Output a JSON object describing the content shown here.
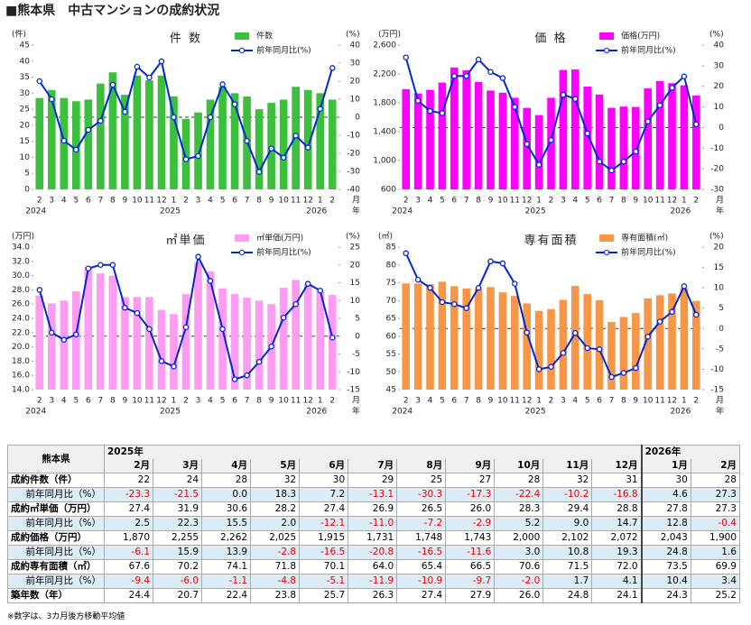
{
  "page_title": "■熊本県　中古マンションの成約状況",
  "chart_data": [
    {
      "type": "bar",
      "title": "件 数",
      "y_unit": "(件)",
      "y2_unit": "(%)",
      "x_unit_month": "月",
      "x_unit_year": "年",
      "categories": [
        "2",
        "3",
        "4",
        "5",
        "6",
        "7",
        "8",
        "9",
        "10",
        "11",
        "12",
        "1",
        "2",
        "3",
        "4",
        "5",
        "6",
        "7",
        "8",
        "9",
        "10",
        "11",
        "12",
        "1",
        "2"
      ],
      "years": [
        "2024",
        null,
        null,
        null,
        null,
        null,
        null,
        null,
        null,
        null,
        null,
        "2025",
        null,
        null,
        null,
        null,
        null,
        null,
        null,
        null,
        null,
        null,
        null,
        "2026",
        null
      ],
      "series": [
        {
          "name": "件数",
          "type": "bar",
          "color": "#3cbf3c",
          "values": [
            28.5,
            31,
            28.5,
            27.5,
            28,
            33,
            36.5,
            29.5,
            35.5,
            34,
            35.5,
            29,
            22,
            24,
            28,
            32,
            30,
            29,
            25,
            27,
            28,
            32,
            31,
            30,
            28
          ]
        },
        {
          "name": "前年同月比(%)",
          "type": "line",
          "axis": "y2",
          "color": "#0026d9",
          "values": [
            20,
            10,
            -13,
            -18,
            -7,
            -2,
            18,
            3,
            28,
            22,
            31,
            0,
            -23.3,
            -21.5,
            0,
            18.3,
            7.2,
            -13.1,
            -30.3,
            -17.3,
            -22.4,
            -10.2,
            -16.8,
            4.6,
            27.3
          ]
        }
      ],
      "ylim": [
        0,
        45
      ],
      "yticks": [
        0,
        5,
        10,
        15,
        20,
        25,
        30,
        35,
        40,
        45
      ],
      "y2lim": [
        -40,
        40
      ],
      "y2ticks": [
        -40,
        -30,
        -20,
        -10,
        0,
        10,
        20,
        30,
        40
      ],
      "y2_refline": 0,
      "grid": false
    },
    {
      "type": "bar",
      "title": "価 格",
      "y_unit": "(万円)",
      "y2_unit": "(%)",
      "x_unit_month": "月",
      "x_unit_year": "年",
      "categories": [
        "2",
        "3",
        "4",
        "5",
        "6",
        "7",
        "8",
        "9",
        "10",
        "11",
        "12",
        "1",
        "2",
        "3",
        "4",
        "5",
        "6",
        "7",
        "8",
        "9",
        "10",
        "11",
        "12",
        "1",
        "2"
      ],
      "years": [
        "2024",
        null,
        null,
        null,
        null,
        null,
        null,
        null,
        null,
        null,
        null,
        "2025",
        null,
        null,
        null,
        null,
        null,
        null,
        null,
        null,
        null,
        null,
        null,
        "2026",
        null
      ],
      "series": [
        {
          "name": "価格(万円)",
          "type": "bar",
          "color": "#ff00ff",
          "values": [
            1990,
            1930,
            1980,
            2080,
            2290,
            2250,
            2090,
            1970,
            1940,
            1870,
            1730,
            1630,
            1870,
            2255,
            2262,
            2025,
            1915,
            1731,
            1748,
            1743,
            2000,
            2102,
            2072,
            2043,
            1900
          ]
        },
        {
          "name": "前年同月比(%)",
          "type": "line",
          "axis": "y2",
          "color": "#0026d9",
          "values": [
            34,
            13,
            8,
            7,
            25,
            25,
            33,
            27,
            24,
            10,
            -8,
            -18,
            -6.1,
            15.9,
            13.9,
            -2.8,
            -16.5,
            -20.8,
            -16.5,
            -11.6,
            3.0,
            10.8,
            19.3,
            24.8,
            1.6
          ]
        }
      ],
      "ylim": [
        600,
        2600
      ],
      "yticks": [
        600,
        {
          "value": 1000,
          "label": "1,000"
        },
        {
          "value": 1400,
          "label": "1,400"
        },
        {
          "value": 1800,
          "label": "1,800"
        },
        {
          "value": 2200,
          "label": "2,200"
        },
        {
          "value": 2600,
          "label": "2,600"
        }
      ],
      "y2lim": [
        -30,
        40
      ],
      "y2ticks": [
        -30,
        -20,
        -10,
        0,
        10,
        20,
        30,
        40
      ],
      "y2_refline": 0,
      "grid": false
    },
    {
      "type": "bar",
      "title": "㎡単価",
      "y_unit": "(万円)",
      "y2_unit": "(%)",
      "x_unit_month": "月",
      "x_unit_year": "年",
      "categories": [
        "2",
        "3",
        "4",
        "5",
        "6",
        "7",
        "8",
        "9",
        "10",
        "11",
        "12",
        "1",
        "2",
        "3",
        "4",
        "5",
        "6",
        "7",
        "8",
        "9",
        "10",
        "11",
        "12",
        "1",
        "2"
      ],
      "years": [
        "2024",
        null,
        null,
        null,
        null,
        null,
        null,
        null,
        null,
        null,
        null,
        "2025",
        null,
        null,
        null,
        null,
        null,
        null,
        null,
        null,
        null,
        null,
        null,
        "2026",
        null
      ],
      "series": [
        {
          "name": "㎡単価(万円)",
          "type": "bar",
          "color": "#ff9cf2",
          "values": [
            27.2,
            26.1,
            26.5,
            27.8,
            31.2,
            30.3,
            30.0,
            27.0,
            27.0,
            27.0,
            25.2,
            24.6,
            27.4,
            31.9,
            30.6,
            28.2,
            27.4,
            26.9,
            26.5,
            26.0,
            28.3,
            29.4,
            28.8,
            27.8,
            27.3
          ]
        },
        {
          "name": "前年同月比(%)",
          "type": "line",
          "axis": "y2",
          "color": "#0026d9",
          "values": [
            13,
            1,
            -1,
            0.5,
            19,
            20,
            20,
            8,
            6.5,
            2,
            -7,
            -8.5,
            2.5,
            22.3,
            15.5,
            2.0,
            -12.1,
            -11.0,
            -7.2,
            -2.9,
            5.2,
            9.0,
            14.7,
            12.8,
            -0.4
          ]
        }
      ],
      "ylim": [
        14,
        34
      ],
      "yticks": [
        {
          "value": 14,
          "label": "14.0"
        },
        {
          "value": 16,
          "label": "16.0"
        },
        {
          "value": 18,
          "label": "18.0"
        },
        {
          "value": 20,
          "label": "20.0"
        },
        {
          "value": 22,
          "label": "22.0"
        },
        {
          "value": 24,
          "label": "24.0"
        },
        {
          "value": 26,
          "label": "26.0"
        },
        {
          "value": 28,
          "label": "28.0"
        },
        {
          "value": 30,
          "label": "30.0"
        },
        {
          "value": 32,
          "label": "32.0"
        },
        {
          "value": 34,
          "label": "34.0"
        }
      ],
      "y2lim": [
        -15,
        25
      ],
      "y2ticks": [
        -15,
        -10,
        -5,
        0,
        5,
        10,
        15,
        20,
        25
      ],
      "y2_refline": 0,
      "grid": false
    },
    {
      "type": "bar",
      "title": "専有面積",
      "y_unit": "(㎡)",
      "y2_unit": "(%)",
      "x_unit_month": "月",
      "x_unit_year": "年",
      "categories": [
        "2",
        "3",
        "4",
        "5",
        "6",
        "7",
        "8",
        "9",
        "10",
        "11",
        "12",
        "1",
        "2",
        "3",
        "4",
        "5",
        "6",
        "7",
        "8",
        "9",
        "10",
        "11",
        "12",
        "1",
        "2"
      ],
      "years": [
        "2024",
        null,
        null,
        null,
        null,
        null,
        null,
        null,
        null,
        null,
        null,
        "2025",
        null,
        null,
        null,
        null,
        null,
        null,
        null,
        null,
        null,
        null,
        null,
        "2026",
        null
      ],
      "series": [
        {
          "name": "専有面積(㎡)",
          "type": "bar",
          "color": "#f79646",
          "values": [
            74.8,
            74.8,
            74.6,
            75.3,
            74,
            73.4,
            73.3,
            73.8,
            72.3,
            71.3,
            69.2,
            67.1,
            67.6,
            70.2,
            74.1,
            71.8,
            70.1,
            64.0,
            65.4,
            66.5,
            70.6,
            71.5,
            72.0,
            73.5,
            69.9
          ]
        },
        {
          "name": "前年同月比(%)",
          "type": "line",
          "axis": "y2",
          "color": "#0026d9",
          "values": [
            18.5,
            12,
            10,
            6.5,
            6,
            5,
            10,
            16.5,
            16,
            11,
            -1,
            -10,
            -9.4,
            -6.0,
            -1.1,
            -4.8,
            -5.1,
            -11.9,
            -10.9,
            -9.7,
            -2.0,
            1.7,
            4.1,
            10.4,
            3.4
          ]
        }
      ],
      "ylim": [
        45,
        85
      ],
      "yticks": [
        45,
        50,
        55,
        60,
        65,
        70,
        75,
        80,
        85
      ],
      "y2lim": [
        -15,
        20
      ],
      "y2ticks": [
        -15,
        -10,
        -5,
        0,
        5,
        10,
        15,
        20
      ],
      "y2_refline": 0,
      "grid": false
    }
  ],
  "table": {
    "corner": "熊本県",
    "groups": [
      {
        "year": "2025年",
        "months": [
          "2月",
          "3月",
          "4月",
          "5月",
          "6月",
          "7月",
          "8月",
          "9月",
          "10月",
          "11月",
          "12月"
        ]
      },
      {
        "year": "2026年",
        "months": [
          "1月",
          "2月"
        ]
      }
    ],
    "rows": [
      {
        "label": "成約件数（件）",
        "cells": [
          "22",
          "24",
          "28",
          "32",
          "30",
          "29",
          "25",
          "27",
          "28",
          "32",
          "31",
          "30",
          "28"
        ]
      },
      {
        "label": "前年同月比（%）",
        "cells": [
          "-23.3",
          "-21.5",
          "0.0",
          "18.3",
          "7.2",
          "-13.1",
          "-30.3",
          "-17.3",
          "-22.4",
          "-10.2",
          "-16.8",
          "4.6",
          "27.3"
        ]
      },
      {
        "label": "成約㎡単価（万円）",
        "cells": [
          "27.4",
          "31.9",
          "30.6",
          "28.2",
          "27.4",
          "26.9",
          "26.5",
          "26.0",
          "28.3",
          "29.4",
          "28.8",
          "27.8",
          "27.3"
        ]
      },
      {
        "label": "前年同月比（%）",
        "cells": [
          "2.5",
          "22.3",
          "15.5",
          "2.0",
          "-12.1",
          "-11.0",
          "-7.2",
          "-2.9",
          "5.2",
          "9.0",
          "14.7",
          "12.8",
          "-0.4"
        ]
      },
      {
        "label": "成約価格（万円）",
        "cells": [
          "1,870",
          "2,255",
          "2,262",
          "2,025",
          "1,915",
          "1,731",
          "1,748",
          "1,743",
          "2,000",
          "2,102",
          "2,072",
          "2,043",
          "1,900"
        ]
      },
      {
        "label": "前年同月比（%）",
        "cells": [
          "-6.1",
          "15.9",
          "13.9",
          "-2.8",
          "-16.5",
          "-20.8",
          "-16.5",
          "-11.6",
          "3.0",
          "10.8",
          "19.3",
          "24.8",
          "1.6"
        ]
      },
      {
        "label": "成約専有面積（㎡）",
        "cells": [
          "67.6",
          "70.2",
          "74.1",
          "71.8",
          "70.1",
          "64.0",
          "65.4",
          "66.5",
          "70.6",
          "71.5",
          "72.0",
          "73.5",
          "69.9"
        ]
      },
      {
        "label": "前年同月比（%）",
        "cells": [
          "-9.4",
          "-6.0",
          "-1.1",
          "-4.8",
          "-5.1",
          "-11.9",
          "-10.9",
          "-9.7",
          "-2.0",
          "1.7",
          "4.1",
          "10.4",
          "3.4"
        ]
      },
      {
        "label": "築年数（年）",
        "cells": [
          "24.4",
          "20.7",
          "22.4",
          "23.8",
          "25.7",
          "26.3",
          "27.4",
          "27.9",
          "26.0",
          "24.8",
          "24.1",
          "24.3",
          "25.2"
        ]
      }
    ]
  },
  "note": "※数字は、3カ月後方移動平均値"
}
